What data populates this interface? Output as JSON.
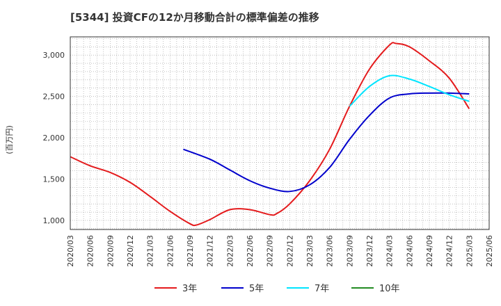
{
  "chart_data": {
    "type": "line",
    "title": "[5344]  投資CFの12か月移動合計の標準偏差の推移",
    "ylabel": "(百万円)",
    "xlabel": "",
    "ylim": [
      890,
      3220
    ],
    "yticks": [
      1000,
      1500,
      2000,
      2500,
      3000
    ],
    "ytick_labels": [
      "1,000",
      "1,500",
      "2,000",
      "2,500",
      "3,000"
    ],
    "xticks": [
      "2020/03",
      "2020/06",
      "2020/09",
      "2020/12",
      "2021/03",
      "2021/06",
      "2021/09",
      "2021/12",
      "2022/03",
      "2022/06",
      "2022/09",
      "2022/12",
      "2023/03",
      "2023/06",
      "2023/09",
      "2023/12",
      "2024/03",
      "2024/06",
      "2024/09",
      "2024/12",
      "2025/03",
      "2025/06"
    ],
    "grid": true,
    "legend_position": "bottom",
    "series": [
      {
        "name": "3年",
        "color": "#e41a1c",
        "x": [
          "2020/03",
          "2020/06",
          "2020/09",
          "2020/12",
          "2021/03",
          "2021/06",
          "2021/09",
          "2021/10",
          "2021/12",
          "2022/03",
          "2022/06",
          "2022/09",
          "2022/10",
          "2022/12",
          "2023/03",
          "2023/06",
          "2023/09",
          "2023/12",
          "2024/03",
          "2024/04",
          "2024/06",
          "2024/09",
          "2024/12",
          "2025/03"
        ],
        "values": [
          1770,
          1660,
          1580,
          1460,
          1290,
          1110,
          960,
          945,
          1010,
          1130,
          1130,
          1070,
          1080,
          1200,
          1480,
          1860,
          2380,
          2830,
          3120,
          3140,
          3100,
          2930,
          2720,
          2350
        ]
      },
      {
        "name": "5年",
        "color": "#0000cc",
        "x": [
          "2021/08",
          "2021/12",
          "2022/03",
          "2022/06",
          "2022/09",
          "2022/12",
          "2023/03",
          "2023/06",
          "2023/09",
          "2023/12",
          "2024/03",
          "2024/06",
          "2024/09",
          "2024/12",
          "2025/03"
        ],
        "values": [
          1860,
          1740,
          1610,
          1480,
          1390,
          1350,
          1430,
          1640,
          1980,
          2270,
          2480,
          2530,
          2540,
          2540,
          2530
        ]
      },
      {
        "name": "7年",
        "color": "#00e5ff",
        "x": [
          "2023/09",
          "2023/12",
          "2024/03",
          "2024/06",
          "2024/09",
          "2024/12",
          "2025/03"
        ],
        "values": [
          2380,
          2620,
          2750,
          2710,
          2620,
          2520,
          2440
        ]
      },
      {
        "name": "10年",
        "color": "#228b22",
        "x": [],
        "values": []
      }
    ]
  }
}
